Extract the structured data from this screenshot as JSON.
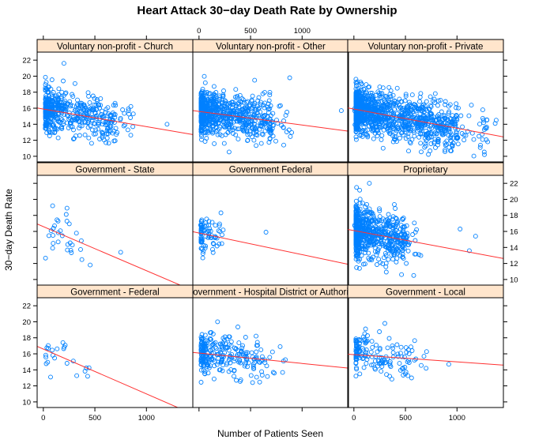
{
  "chart_data": {
    "type": "scatter",
    "title": "Heart Attack 30−day Death Rate by Ownership",
    "xlabel": "Number of Patients Seen",
    "ylabel": "30−day Death Rate",
    "xlim": [
      -60,
      1450
    ],
    "ylim": [
      9.3,
      23
    ],
    "xticks": [
      0,
      500,
      1000
    ],
    "xtick_labels": [
      "0",
      "500",
      "1000"
    ],
    "yticks": [
      10,
      12,
      14,
      16,
      18,
      20,
      22
    ],
    "ytick_labels": [
      "10",
      "12",
      "14",
      "16",
      "18",
      "20",
      "22"
    ],
    "panels": [
      {
        "name": "Government - Federal",
        "n": 20,
        "fit": [
          16.6,
          -0.0056
        ],
        "spread": [
          0,
          450
        ],
        "sd": 1.2,
        "outliers": [
          [
            190,
            17.4
          ],
          [
            70,
            13.1
          ],
          [
            430,
            13.2
          ]
        ]
      },
      {
        "name": "Government - Hospital District or Authority",
        "n": 260,
        "fit": [
          16.1,
          -0.0013
        ],
        "spread": [
          0,
          650
        ],
        "sd": 1.25,
        "outliers": [
          [
            730,
            13.6
          ],
          [
            720,
            13.7
          ],
          [
            640,
            14.9
          ],
          [
            180,
            20
          ],
          [
            820,
            15.1
          ]
        ]
      },
      {
        "name": "Government - Local",
        "n": 150,
        "fit": [
          15.9,
          -0.0009
        ],
        "spread": [
          0,
          550
        ],
        "sd": 1.3,
        "outliers": [
          [
            300,
            19.8
          ],
          [
            920,
            14.7
          ],
          [
            680,
            15.7
          ],
          [
            700,
            14.2
          ]
        ]
      },
      {
        "name": "Government - State",
        "n": 28,
        "fit": [
          16.6,
          -0.0055
        ],
        "spread": [
          0,
          400
        ],
        "sd": 1.5,
        "outliers": [
          [
            750,
            13.4
          ],
          [
            90,
            19.2
          ],
          [
            230,
            18.9
          ]
        ]
      },
      {
        "name": "Government Federal",
        "n": 80,
        "fit": [
          15.8,
          -0.0027
        ],
        "spread": [
          0,
          200
        ],
        "sd": 1.3,
        "outliers": [
          [
            650,
            15.9
          ]
        ]
      },
      {
        "name": "Proprietary",
        "n": 700,
        "fit": [
          16.1,
          -0.0024
        ],
        "spread": [
          0,
          500
        ],
        "sd": 1.55,
        "outliers": [
          [
            1180,
            15.4
          ],
          [
            1120,
            13.6
          ],
          [
            1030,
            16.3
          ],
          [
            580,
            10.5
          ],
          [
            150,
            22
          ]
        ]
      },
      {
        "name": "Voluntary non-profit - Church",
        "n": 500,
        "fit": [
          15.9,
          -0.0022
        ],
        "spread": [
          0,
          700
        ],
        "sd": 1.35,
        "outliers": [
          [
            200,
            21.6
          ],
          [
            1200,
            14
          ]
        ]
      },
      {
        "name": "Voluntary non-profit - Other",
        "n": 750,
        "fit": [
          15.6,
          -0.0017
        ],
        "spread": [
          0,
          700
        ],
        "sd": 1.35,
        "outliers": [
          [
            1380,
            15.7
          ],
          [
            880,
            19.8
          ]
        ]
      },
      {
        "name": "Voluntary non-profit - Private",
        "n": 1200,
        "fit": [
          15.9,
          -0.0024
        ],
        "spread": [
          0,
          1000
        ],
        "sd": 1.35,
        "outliers": [
          [
            1370,
            14.1
          ],
          [
            1380,
            14.5
          ],
          [
            1250,
            15.8
          ]
        ]
      }
    ]
  }
}
